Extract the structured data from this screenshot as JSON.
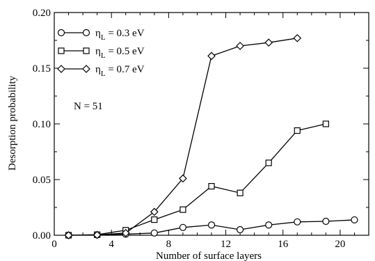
{
  "chart_data": {
    "type": "line",
    "title": "",
    "xlabel": "Number of surface layers",
    "ylabel": "Desorption probability",
    "xlim": [
      0,
      22
    ],
    "ylim": [
      0,
      0.2
    ],
    "x_ticks": [
      0,
      4,
      8,
      12,
      16,
      20
    ],
    "x_tick_labels": [
      "0",
      "4",
      "8",
      "12",
      "16",
      "20"
    ],
    "y_ticks": [
      0,
      0.05,
      0.1,
      0.15,
      0.2
    ],
    "y_tick_labels": [
      "0.00",
      "0.05",
      "0.10",
      "0.15",
      "0.20"
    ],
    "grid": false,
    "legend_position": "top-left",
    "annotation": "N = 51",
    "series": [
      {
        "name": "η_L = 0.3 eV",
        "legend_symbol": "η",
        "legend_sub": "L",
        "legend_rest": " = 0.3 eV",
        "marker": "circle",
        "x": [
          1,
          3,
          5,
          7,
          9,
          11,
          13,
          15,
          17,
          19,
          21
        ],
        "y": [
          0.0,
          0.0003,
          0.001,
          0.002,
          0.007,
          0.0092,
          0.005,
          0.0092,
          0.012,
          0.0125,
          0.0138
        ]
      },
      {
        "name": "η_L = 0.5 eV",
        "legend_symbol": "η",
        "legend_sub": "L",
        "legend_rest": " = 0.5 eV",
        "marker": "square",
        "x": [
          1,
          3,
          5,
          7,
          9,
          11,
          13,
          15,
          17,
          19
        ],
        "y": [
          0.0,
          0.0005,
          0.0045,
          0.014,
          0.023,
          0.044,
          0.038,
          0.065,
          0.094,
          0.1
        ]
      },
      {
        "name": "η_L = 0.7 eV",
        "legend_symbol": "η",
        "legend_sub": "L",
        "legend_rest": " = 0.7 eV",
        "marker": "diamond",
        "x": [
          1,
          3,
          5,
          7,
          9,
          11,
          13,
          15,
          17
        ],
        "y": [
          0.0,
          0.0003,
          0.002,
          0.021,
          0.051,
          0.161,
          0.17,
          0.173,
          0.177
        ]
      }
    ]
  }
}
